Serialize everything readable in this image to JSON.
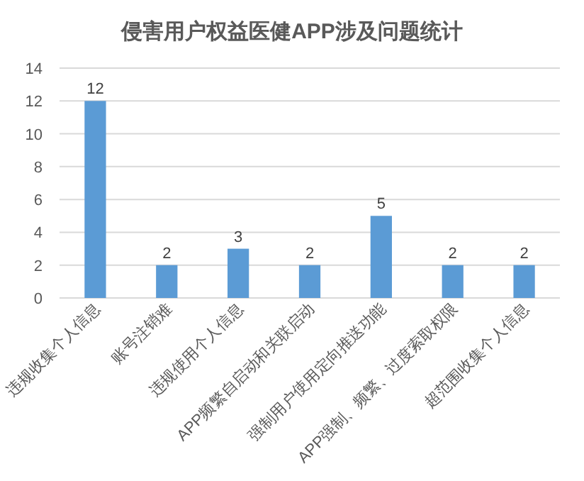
{
  "chart_data": {
    "type": "bar",
    "title": "侵害用户权益医健APP涉及问题统计",
    "categories": [
      "违规收集个人信息",
      "账号注销难",
      "违规使用个人信息",
      "APP频繁自启动和关联启动",
      "强制用户使用定向推送功能",
      "APP强制、频繁、过度索取权限",
      "超范围收集个人信息"
    ],
    "values": [
      12,
      2,
      3,
      2,
      5,
      2,
      2
    ],
    "color": "#5b9bd5",
    "ylim": [
      0,
      14
    ],
    "yticks": [
      0,
      2,
      4,
      6,
      8,
      10,
      12,
      14
    ],
    "grid": "y",
    "data_labels": true
  }
}
